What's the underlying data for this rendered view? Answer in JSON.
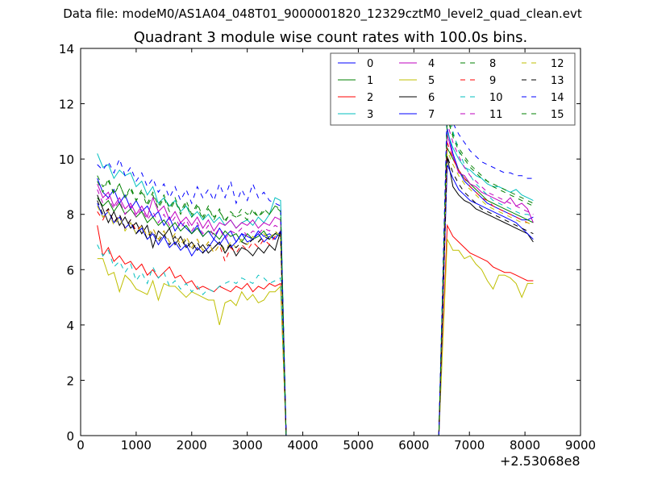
{
  "suptitle": "Data file: modeM0/AS1A04_048T01_9000001820_12329cztM0_level2_quad_clean.evt",
  "chart_data": {
    "type": "line",
    "title": "Quadrant 3 module wise count rates with 100.0s bins.",
    "xlabel": "",
    "ylabel": "",
    "x_offset_label": "+2.53068e8",
    "xlim": [
      0,
      9000
    ],
    "ylim": [
      0,
      14
    ],
    "xticks": [
      0,
      1000,
      2000,
      3000,
      4000,
      5000,
      6000,
      7000,
      8000,
      9000
    ],
    "yticks": [
      0,
      2,
      4,
      6,
      8,
      10,
      12,
      14
    ],
    "legend_position": "top-right",
    "legend_columns": 4,
    "gaps": [
      {
        "drop_start": 3600,
        "zero_start": 3700,
        "zero_end": 6450,
        "rise_end": 6600
      }
    ],
    "series": [
      {
        "name": "0",
        "color": "#0000ff",
        "dash": "solid",
        "segment1": {
          "x_start": 300,
          "x_end": 3600,
          "values": [
            9.3,
            8.8,
            8.6,
            8.9,
            8.4,
            8.7,
            8.2,
            8.5,
            8.1,
            8.3,
            7.9,
            8.1,
            7.6,
            7.9,
            7.4,
            7.7,
            7.5,
            7.3,
            7.6,
            7.2,
            7.4,
            7.1,
            7.5,
            7.2,
            7.4,
            7.0,
            7.3,
            7.2,
            7.1,
            7.4,
            7.2,
            7.3,
            7.1,
            7.4
          ]
        },
        "segment2": {
          "x_start": 6600,
          "x_end": 8150,
          "values": [
            11.1,
            10.2,
            9.6,
            9.2,
            9.0,
            8.8,
            8.6,
            8.4,
            8.3,
            8.2,
            8.1,
            8.0,
            7.9,
            7.8,
            7.8,
            7.9
          ]
        }
      },
      {
        "name": "1",
        "color": "#008000",
        "dash": "solid",
        "segment1": {
          "x_start": 300,
          "x_end": 3600,
          "values": [
            8.6,
            8.3,
            8.5,
            8.1,
            8.4,
            8.0,
            8.2,
            7.9,
            8.1,
            7.7,
            7.9,
            7.6,
            7.8,
            7.5,
            7.7,
            7.4,
            7.6,
            7.3,
            7.5,
            7.2,
            7.4,
            7.3,
            7.1,
            7.4,
            7.2,
            7.3,
            7.0,
            7.3,
            7.1,
            7.2,
            7.4,
            7.1,
            7.3,
            7.2
          ]
        },
        "segment2": {
          "x_start": 6600,
          "x_end": 8150,
          "values": [
            10.4,
            10.0,
            9.6,
            9.3,
            9.1,
            8.9,
            8.7,
            8.5,
            8.4,
            8.3,
            8.2,
            8.1,
            8.0,
            7.9,
            7.8,
            7.7
          ]
        }
      },
      {
        "name": "2",
        "color": "#ff0000",
        "dash": "solid",
        "segment1": {
          "x_start": 300,
          "x_end": 3600,
          "values": [
            7.6,
            6.5,
            6.8,
            6.3,
            6.5,
            6.2,
            6.3,
            6.0,
            6.2,
            5.8,
            6.0,
            5.7,
            5.9,
            6.1,
            5.7,
            5.8,
            5.5,
            5.6,
            5.3,
            5.4,
            5.3,
            5.2,
            5.4,
            5.3,
            5.2,
            5.4,
            5.3,
            5.5,
            5.2,
            5.4,
            5.3,
            5.5,
            5.4,
            5.5
          ]
        },
        "segment2": {
          "x_start": 6600,
          "x_end": 8150,
          "values": [
            7.6,
            7.2,
            7.0,
            6.8,
            6.6,
            6.5,
            6.4,
            6.3,
            6.1,
            6.0,
            5.9,
            5.9,
            5.8,
            5.7,
            5.6,
            5.6
          ]
        }
      },
      {
        "name": "3",
        "color": "#00bfbf",
        "dash": "solid",
        "segment1": {
          "x_start": 300,
          "x_end": 3600,
          "values": [
            10.2,
            9.7,
            9.8,
            9.3,
            9.6,
            9.4,
            9.5,
            9.0,
            9.2,
            8.7,
            9.0,
            8.4,
            8.6,
            8.3,
            8.5,
            8.1,
            8.3,
            7.9,
            8.1,
            7.8,
            8.0,
            7.7,
            7.9,
            7.6,
            7.8,
            7.5,
            7.7,
            7.8,
            7.6,
            7.9,
            7.7,
            8.0,
            8.6,
            8.5
          ]
        },
        "segment2": {
          "x_start": 6600,
          "x_end": 8150,
          "values": [
            11.0,
            10.4,
            10.0,
            9.7,
            9.6,
            9.4,
            9.3,
            9.1,
            9.0,
            9.0,
            8.9,
            8.8,
            8.9,
            8.7,
            8.6,
            8.5
          ]
        }
      },
      {
        "name": "4",
        "color": "#bf00bf",
        "dash": "solid",
        "segment1": {
          "x_start": 300,
          "x_end": 3600,
          "values": [
            9.1,
            8.6,
            8.8,
            8.3,
            8.6,
            8.2,
            8.4,
            8.0,
            8.3,
            7.9,
            8.6,
            8.1,
            8.3,
            7.8,
            8.1,
            7.7,
            7.9,
            7.6,
            7.9,
            7.5,
            7.8,
            7.4,
            7.7,
            7.6,
            7.8,
            7.5,
            7.7,
            7.6,
            7.8,
            7.5,
            7.7,
            7.6,
            7.9,
            7.8
          ]
        },
        "segment2": {
          "x_start": 6600,
          "x_end": 8150,
          "values": [
            10.9,
            10.1,
            9.5,
            9.4,
            9.1,
            9.0,
            8.8,
            8.7,
            8.6,
            8.5,
            8.4,
            8.6,
            8.3,
            8.4,
            8.2,
            7.7
          ]
        }
      },
      {
        "name": "5",
        "color": "#bfbf00",
        "dash": "solid",
        "segment1": {
          "x_start": 300,
          "x_end": 3600,
          "values": [
            6.4,
            6.4,
            5.8,
            5.9,
            5.2,
            5.8,
            5.6,
            5.3,
            5.2,
            5.1,
            5.6,
            4.9,
            5.5,
            5.4,
            5.4,
            5.2,
            5.0,
            5.2,
            5.1,
            5.0,
            4.9,
            4.9,
            4.0,
            4.8,
            4.9,
            4.7,
            5.2,
            4.9,
            5.1,
            4.8,
            4.9,
            5.2,
            5.2,
            5.4
          ]
        },
        "segment2": {
          "x_start": 6600,
          "x_end": 8150,
          "values": [
            7.1,
            6.7,
            6.7,
            6.4,
            6.5,
            6.2,
            6.0,
            5.6,
            5.3,
            5.8,
            5.8,
            5.7,
            5.5,
            5.0,
            5.5,
            5.5
          ]
        }
      },
      {
        "name": "6",
        "color": "#000000",
        "dash": "solid",
        "segment1": {
          "x_start": 300,
          "x_end": 3600,
          "values": [
            8.7,
            8.2,
            7.7,
            8.1,
            7.6,
            7.9,
            7.5,
            7.7,
            7.3,
            7.6,
            6.8,
            7.4,
            7.2,
            7.5,
            6.9,
            7.2,
            6.8,
            7.0,
            6.7,
            6.9,
            6.6,
            6.8,
            7.0,
            6.6,
            6.9,
            6.5,
            6.8,
            6.7,
            6.5,
            6.8,
            6.6,
            6.9,
            6.7,
            7.4
          ]
        },
        "segment2": {
          "x_start": 6600,
          "x_end": 8150,
          "values": [
            10.1,
            9.0,
            8.7,
            8.5,
            8.4,
            8.2,
            8.1,
            8.0,
            7.9,
            7.8,
            7.7,
            7.6,
            7.5,
            7.4,
            7.3,
            7.0
          ]
        }
      },
      {
        "name": "7",
        "color": "#0000ff",
        "dash": "solid",
        "segment1": {
          "x_start": 300,
          "x_end": 3600,
          "values": [
            8.4,
            7.9,
            8.1,
            7.7,
            7.9,
            7.5,
            7.7,
            7.3,
            7.5,
            7.1,
            7.3,
            6.9,
            7.2,
            6.8,
            7.0,
            6.7,
            6.9,
            6.5,
            6.8,
            6.6,
            6.8,
            7.1,
            6.9,
            7.2,
            6.8,
            7.0,
            7.3,
            7.0,
            7.1,
            7.3,
            7.0,
            7.2,
            7.1,
            7.4
          ]
        },
        "segment2": {
          "x_start": 6600,
          "x_end": 8150,
          "values": [
            9.8,
            9.3,
            8.9,
            8.7,
            8.5,
            8.4,
            8.3,
            8.2,
            8.1,
            8.0,
            7.9,
            7.8,
            7.7,
            7.5,
            7.3,
            7.1
          ]
        }
      },
      {
        "name": "8",
        "color": "#008000",
        "dash": "dashed",
        "segment1": {
          "x_start": 300,
          "x_end": 3600,
          "values": [
            9.2,
            8.8,
            9.3,
            8.7,
            9.1,
            8.6,
            9.0,
            8.5,
            8.9,
            8.4,
            8.8,
            8.3,
            8.7,
            8.2,
            8.6,
            8.1,
            8.5,
            8.0,
            8.4,
            7.9,
            8.3,
            7.8,
            8.2,
            7.7,
            8.1,
            7.9,
            8.0,
            7.8,
            8.2,
            7.9,
            8.1,
            8.0,
            8.3,
            8.2
          ]
        },
        "segment2": {
          "x_start": 6600,
          "x_end": 8150,
          "values": [
            11.6,
            10.9,
            10.4,
            10.1,
            9.8,
            9.6,
            9.4,
            9.2,
            9.1,
            9.0,
            8.9,
            8.8,
            8.7,
            8.6,
            8.5,
            8.4
          ]
        }
      },
      {
        "name": "9",
        "color": "#ff0000",
        "dash": "dashed",
        "segment1": {
          "x_start": 300,
          "x_end": 3600,
          "values": [
            8.1,
            7.8,
            8.2,
            7.7,
            8.0,
            7.5,
            7.8,
            7.4,
            7.6,
            7.2,
            7.5,
            7.1,
            7.4,
            7.0,
            7.3,
            6.9,
            7.2,
            6.8,
            7.1,
            6.7,
            7.0,
            6.6,
            6.9,
            6.3,
            6.8,
            6.6,
            6.9,
            6.7,
            7.0,
            6.8,
            7.1,
            6.9,
            7.2,
            7.3
          ]
        },
        "segment2": {
          "x_start": 6600,
          "x_end": 8150,
          "values": [
            10.6,
            10.0,
            9.6,
            9.3,
            9.0,
            8.8,
            8.6,
            8.5,
            8.3,
            8.2,
            8.1,
            8.0,
            7.9,
            7.8,
            7.7,
            7.6
          ]
        }
      },
      {
        "name": "10",
        "color": "#00bfbf",
        "dash": "dashed",
        "segment1": {
          "x_start": 300,
          "x_end": 3600,
          "values": [
            6.9,
            6.5,
            6.7,
            6.1,
            6.3,
            5.9,
            6.2,
            5.6,
            5.9,
            5.5,
            6.1,
            5.7,
            5.9,
            5.4,
            5.6,
            5.3,
            5.5,
            5.2,
            5.4,
            5.1,
            5.3,
            5.2,
            5.4,
            5.5,
            5.6,
            5.5,
            5.7,
            5.6,
            5.5,
            5.8,
            5.7,
            5.5,
            5.6,
            5.7
          ]
        },
        "segment2": {
          "x_start": 6600,
          "x_end": 8150,
          "values": [
            12.1,
            11.0,
            10.3,
            9.8,
            9.4,
            9.1,
            8.9,
            8.7,
            8.5,
            8.4,
            8.3,
            8.2,
            8.1,
            8.0,
            8.0,
            7.9
          ]
        }
      },
      {
        "name": "11",
        "color": "#bf00bf",
        "dash": "dashed",
        "segment1": {
          "x_start": 300,
          "x_end": 3600,
          "values": [
            8.9,
            8.4,
            8.6,
            8.2,
            8.5,
            8.0,
            8.3,
            7.9,
            8.2,
            7.8,
            8.1,
            7.7,
            8.0,
            7.6,
            7.9,
            7.5,
            7.8,
            7.4,
            7.7,
            7.3,
            7.6,
            7.2,
            7.5,
            7.1,
            7.4,
            7.3,
            7.5,
            7.2,
            7.4,
            7.3,
            7.5,
            7.4,
            7.6,
            7.5
          ]
        },
        "segment2": {
          "x_start": 6600,
          "x_end": 8150,
          "values": [
            11.3,
            10.6,
            10.1,
            9.7,
            9.4,
            9.2,
            9.0,
            8.8,
            8.7,
            8.6,
            8.5,
            8.4,
            8.3,
            8.2,
            8.1,
            8.0
          ]
        }
      },
      {
        "name": "12",
        "color": "#bfbf00",
        "dash": "dashed",
        "segment1": {
          "x_start": 300,
          "x_end": 3600,
          "values": [
            8.3,
            7.9,
            8.1,
            7.6,
            7.9,
            7.4,
            7.7,
            7.3,
            7.6,
            7.2,
            7.5,
            7.1,
            7.4,
            7.0,
            7.3,
            6.9,
            7.2,
            6.8,
            7.1,
            6.7,
            7.0,
            6.6,
            6.9,
            6.7,
            7.0,
            6.8,
            7.1,
            6.9,
            7.2,
            7.0,
            7.3,
            7.1,
            7.4,
            7.2
          ]
        },
        "segment2": {
          "x_start": 6600,
          "x_end": 8150,
          "values": [
            10.3,
            9.8,
            9.4,
            9.1,
            8.9,
            8.7,
            8.5,
            8.3,
            8.2,
            8.1,
            8.0,
            7.9,
            7.8,
            7.7,
            7.7,
            7.6
          ]
        }
      },
      {
        "name": "13",
        "color": "#000000",
        "dash": "dashed",
        "segment1": {
          "x_start": 300,
          "x_end": 3600,
          "values": [
            8.5,
            8.0,
            8.2,
            7.7,
            8.0,
            7.5,
            7.8,
            7.3,
            7.6,
            7.1,
            7.4,
            7.0,
            7.3,
            6.9,
            7.2,
            6.8,
            7.1,
            6.7,
            7.0,
            6.6,
            6.9,
            6.8,
            7.0,
            6.7,
            6.9,
            6.8,
            7.0,
            6.9,
            7.1,
            7.0,
            7.2,
            7.1,
            7.3,
            7.4
          ]
        },
        "segment2": {
          "x_start": 6600,
          "x_end": 8150,
          "values": [
            10.1,
            9.5,
            9.1,
            8.8,
            8.6,
            8.4,
            8.2,
            8.1,
            8.0,
            7.9,
            7.8,
            7.7,
            7.6,
            7.5,
            7.4,
            7.3
          ]
        }
      },
      {
        "name": "14",
        "color": "#0000ff",
        "dash": "dashed",
        "segment1": {
          "x_start": 300,
          "x_end": 3600,
          "values": [
            9.8,
            9.6,
            9.9,
            9.5,
            10.0,
            9.4,
            9.7,
            9.2,
            9.5,
            9.0,
            9.3,
            8.8,
            9.1,
            8.6,
            9.0,
            8.5,
            8.9,
            8.4,
            9.0,
            8.6,
            8.9,
            8.5,
            9.1,
            8.6,
            9.2,
            8.4,
            8.9,
            8.5,
            9.1,
            8.6,
            8.8,
            8.5,
            8.4,
            8.3
          ]
        },
        "segment2": {
          "x_start": 6600,
          "x_end": 8150,
          "values": [
            11.9,
            11.3,
            10.9,
            10.6,
            10.3,
            10.1,
            9.9,
            9.8,
            9.7,
            9.6,
            9.5,
            9.5,
            9.4,
            9.4,
            9.3,
            9.3
          ]
        }
      },
      {
        "name": "15",
        "color": "#008000",
        "dash": "dashed",
        "segment1": {
          "x_start": 300,
          "x_end": 3600,
          "values": [
            9.4,
            9.0,
            9.2,
            8.8,
            9.1,
            8.6,
            8.9,
            8.5,
            8.8,
            8.3,
            8.7,
            8.2,
            8.6,
            8.1,
            8.5,
            8.0,
            8.4,
            7.9,
            8.3,
            7.8,
            8.2,
            7.9,
            8.1,
            7.8,
            8.0,
            7.9,
            8.2,
            8.0,
            8.1,
            7.9,
            8.2,
            8.0,
            8.3,
            8.1
          ]
        },
        "segment2": {
          "x_start": 6600,
          "x_end": 8150,
          "values": [
            11.5,
            10.8,
            10.3,
            10.0,
            9.7,
            9.5,
            9.3,
            9.2,
            9.0,
            8.9,
            8.8,
            8.7,
            8.6,
            8.5,
            8.4,
            8.3
          ]
        }
      }
    ]
  }
}
